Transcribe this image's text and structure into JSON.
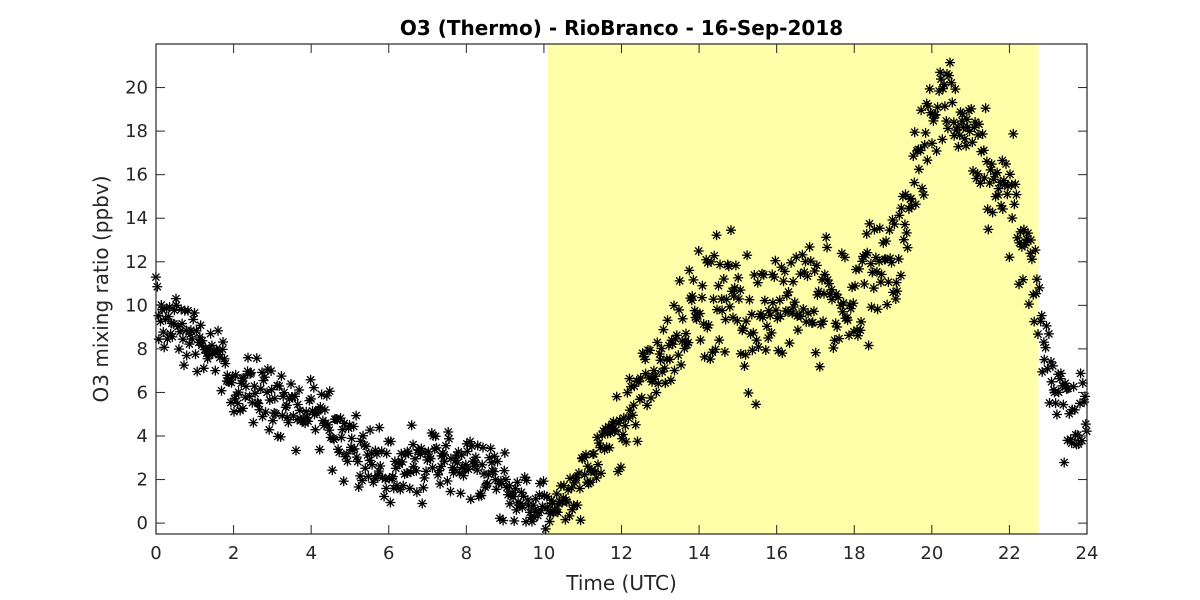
{
  "chart_data": {
    "type": "scatter",
    "title": "O3 (Thermo) - RioBranco - 16-Sep-2018",
    "xlabel": "Time (UTC)",
    "ylabel": "O3 mixing ratio (ppbv)",
    "xlim": [
      0,
      24
    ],
    "ylim": [
      -0.5,
      22
    ],
    "xticks": [
      0,
      2,
      4,
      6,
      8,
      10,
      12,
      14,
      16,
      18,
      20,
      22,
      24
    ],
    "yticks": [
      0,
      2,
      4,
      6,
      8,
      10,
      12,
      14,
      16,
      18,
      20
    ],
    "grid": false,
    "marker": "asterisk",
    "marker_color": "#000000",
    "daytime_shading": {
      "x_start": 10.1,
      "x_end": 22.75,
      "color": "#FFFFAA"
    },
    "trend_x": [
      0,
      0.5,
      1,
      1.5,
      2,
      2.5,
      3,
      3.5,
      4,
      4.5,
      5,
      5.5,
      6,
      6.5,
      7,
      7.5,
      8,
      8.5,
      9,
      9.5,
      10,
      10.5,
      11,
      11.5,
      12,
      12.5,
      13,
      13.5,
      14,
      14.5,
      15,
      15.5,
      16,
      16.5,
      17,
      17.5,
      18,
      18.5,
      19,
      19.5,
      20,
      20.5,
      21,
      21.5,
      22,
      22.5,
      23,
      23.5,
      24
    ],
    "trend_y": [
      10.0,
      8.8,
      8.2,
      7.5,
      6.3,
      5.9,
      5.6,
      5.0,
      5.0,
      4.7,
      3.4,
      2.8,
      2.6,
      2.6,
      2.9,
      2.7,
      2.4,
      2.1,
      1.6,
      0.8,
      0.7,
      1.0,
      2.0,
      3.5,
      4.6,
      6.0,
      7.5,
      8.7,
      10.5,
      10.2,
      9.5,
      9.0,
      10.5,
      10.0,
      11.0,
      10.0,
      10.5,
      11.0,
      12.0,
      15.5,
      19.5,
      19.0,
      17.5,
      16.0,
      15.0,
      12.5,
      7.0,
      5.0,
      5.0
    ],
    "spread": [
      1.0,
      1.0,
      1.0,
      1.2,
      1.0,
      1.0,
      1.2,
      1.2,
      1.2,
      1.1,
      1.1,
      1.2,
      1.2,
      1.3,
      1.3,
      1.2,
      1.1,
      1.0,
      0.9,
      0.8,
      0.8,
      0.8,
      1.0,
      1.2,
      1.3,
      1.4,
      1.4,
      1.5,
      1.5,
      2.0,
      2.0,
      2.0,
      2.0,
      2.0,
      2.0,
      2.0,
      2.0,
      2.0,
      2.0,
      2.0,
      1.5,
      1.5,
      1.5,
      1.5,
      1.8,
      2.0,
      1.5,
      1.5,
      1.5
    ],
    "n_samples": 900
  }
}
